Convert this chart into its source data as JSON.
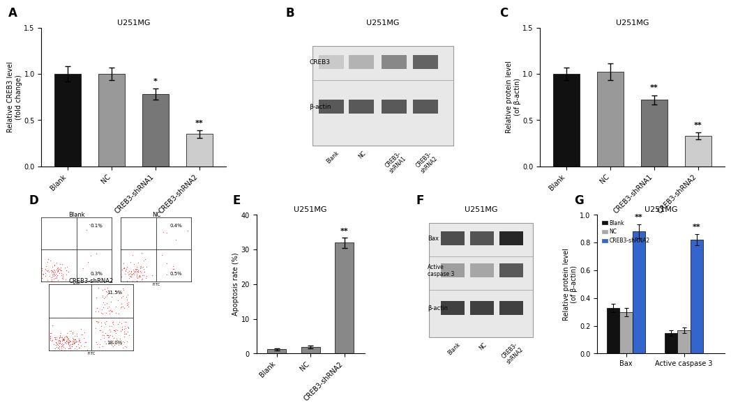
{
  "panel_A": {
    "title": "U251MG",
    "ylabel": "Relative CREB3 level\n(fold change)",
    "categories": [
      "Blank",
      "NC",
      "CREB3-shRNA1",
      "CREB3-shRNA2"
    ],
    "values": [
      1.0,
      1.0,
      0.78,
      0.35
    ],
    "errors": [
      0.08,
      0.07,
      0.06,
      0.04
    ],
    "colors": [
      "#111111",
      "#999999",
      "#777777",
      "#cccccc"
    ],
    "ylim": [
      0,
      1.5
    ],
    "yticks": [
      0.0,
      0.5,
      1.0,
      1.5
    ],
    "sig_labels": [
      "",
      "",
      "*",
      "**"
    ]
  },
  "panel_C": {
    "title": "U251MG",
    "ylabel": "Relative protein level\n(of β-actin)",
    "categories": [
      "Blank",
      "NC",
      "CREB3-shRNA1",
      "CREB3-shRNA2"
    ],
    "values": [
      1.0,
      1.02,
      0.72,
      0.33
    ],
    "errors": [
      0.07,
      0.09,
      0.05,
      0.04
    ],
    "colors": [
      "#111111",
      "#999999",
      "#777777",
      "#cccccc"
    ],
    "ylim": [
      0,
      1.5
    ],
    "yticks": [
      0.0,
      0.5,
      1.0,
      1.5
    ],
    "sig_labels": [
      "",
      "",
      "**",
      "**"
    ]
  },
  "panel_E": {
    "title": "U251MG",
    "ylabel": "Apoptosis rate (%)",
    "categories": [
      "Blank",
      "NC",
      "CREB3-shRNA2"
    ],
    "values": [
      1.2,
      1.8,
      32.0
    ],
    "errors": [
      0.3,
      0.4,
      1.5
    ],
    "colors": [
      "#888888",
      "#888888",
      "#888888"
    ],
    "ylim": [
      0,
      40
    ],
    "yticks": [
      0,
      10,
      20,
      30,
      40
    ],
    "sig_labels": [
      "",
      "",
      "**"
    ]
  },
  "panel_G": {
    "title": "U251MG",
    "ylabel": "Relative protein level\n(of β-actin)",
    "groups": [
      "Bax",
      "Active caspase 3"
    ],
    "series": [
      "Blank",
      "NC",
      "CREB3-shRNA2"
    ],
    "values": [
      [
        0.33,
        0.3,
        0.88
      ],
      [
        0.15,
        0.17,
        0.82
      ]
    ],
    "errors": [
      [
        0.03,
        0.03,
        0.05
      ],
      [
        0.02,
        0.02,
        0.04
      ]
    ],
    "colors": [
      "#111111",
      "#aaaaaa",
      "#3366cc"
    ],
    "ylim": [
      0,
      1.0
    ],
    "yticks": [
      0.0,
      0.2,
      0.4,
      0.6,
      0.8,
      1.0
    ]
  },
  "panel_B": {
    "title": "U251MG",
    "labels": [
      "CREB3",
      "β-actin"
    ],
    "x_labels": [
      "Blank",
      "NC",
      "CREB3-\nshRNA1",
      "CREB3-\nshRNA2"
    ]
  },
  "panel_F": {
    "title": "U251MG",
    "labels": [
      "Bax",
      "Active\ncaspase 3",
      "β-actin"
    ],
    "x_labels": [
      "Blank",
      "NC",
      "CREB3-\nshRNA2"
    ]
  },
  "panel_D": {
    "subpanels": [
      {
        "label": "Blank",
        "q1": "0.1%",
        "q3": "0.3%"
      },
      {
        "label": "NC",
        "q1": "0.4%",
        "q3": "0.5%"
      },
      {
        "label": "CREB3-shRNA2",
        "q1": "11.5%",
        "q3": "18.0%"
      }
    ]
  }
}
